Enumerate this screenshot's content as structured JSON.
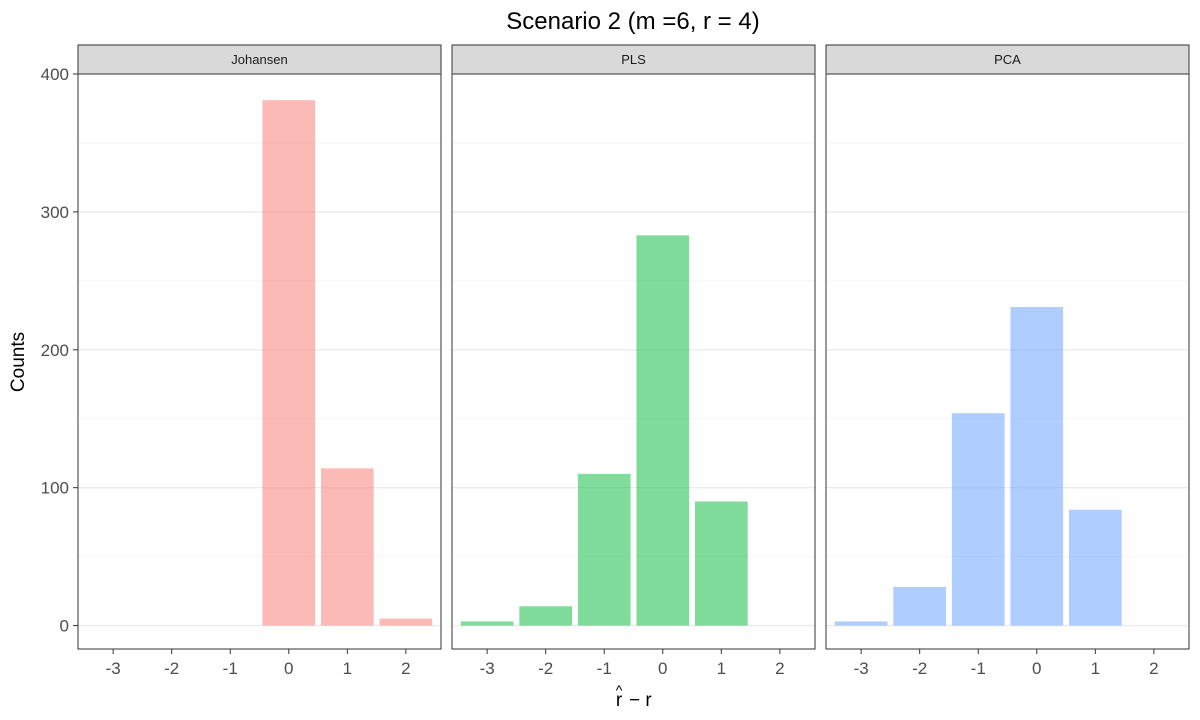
{
  "chart_data": {
    "type": "bar",
    "title": "Scenario 2 (m =6, r = 4)",
    "ylabel": "Counts",
    "xlabel_main": "r",
    "xlabel_hat": "^",
    "xlabel_rest": "− r",
    "ylim": [
      -17,
      400
    ],
    "y_ticks": [
      0,
      100,
      200,
      300,
      400
    ],
    "y_tick_labels": [
      "0",
      "100",
      "200",
      "300",
      "400"
    ],
    "categories": [
      -3,
      -2,
      -1,
      0,
      1,
      2
    ],
    "x_tick_labels": [
      "-3",
      "-2",
      "-1",
      "0",
      "1",
      "2"
    ],
    "grid": true,
    "legend": "none",
    "panels": [
      {
        "name": "Johansen",
        "color": "#F8766D",
        "values": [
          0,
          0,
          0,
          381,
          114,
          5
        ]
      },
      {
        "name": "PLS",
        "color": "#00BA38",
        "values": [
          3,
          14,
          110,
          283,
          90,
          0
        ]
      },
      {
        "name": "PCA",
        "color": "#619CFF",
        "values": [
          3,
          28,
          154,
          231,
          84,
          0
        ]
      }
    ]
  }
}
